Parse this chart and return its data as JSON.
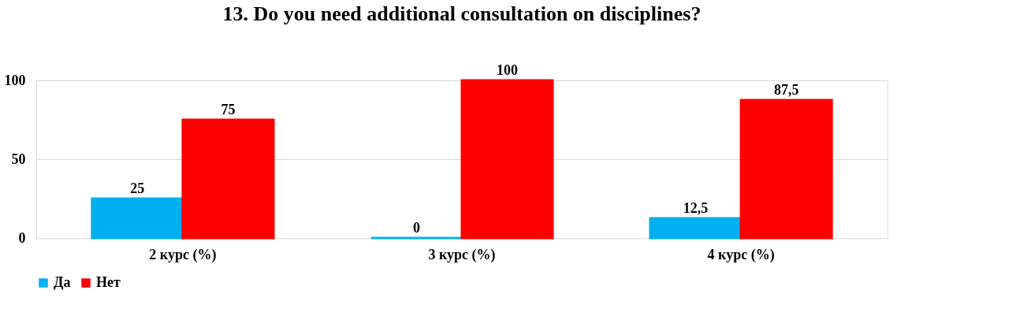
{
  "chart_data": {
    "type": "bar",
    "title": "13. Do you need additional consultation on disciplines?",
    "categories": [
      "2 курс (%)",
      "3 курс (%)",
      "4 курс (%)"
    ],
    "series": [
      {
        "name": "Да",
        "color": "#00b0f0",
        "values": [
          25,
          0,
          12.5
        ],
        "value_labels": [
          "25",
          "0",
          "12,5"
        ]
      },
      {
        "name": "Нет",
        "color": "#ff0000",
        "values": [
          75,
          100,
          87.5
        ],
        "value_labels": [
          "75",
          "100",
          "87,5"
        ]
      }
    ],
    "ylim": [
      0,
      100
    ],
    "yticks": [
      0,
      50,
      100
    ],
    "grid": "y",
    "legend": "bottom"
  }
}
